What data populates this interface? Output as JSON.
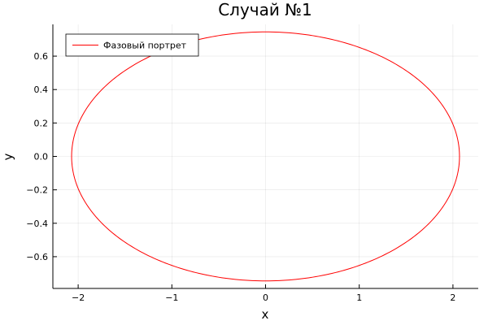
{
  "chart_data": {
    "type": "line",
    "title": "Случай №1",
    "xlabel": "x",
    "ylabel": "y",
    "xlim": [
      -2.27,
      2.27
    ],
    "ylim": [
      -0.79,
      0.79
    ],
    "xticks": [
      -2,
      -1,
      0,
      1,
      2
    ],
    "xtick_labels": [
      "−2",
      "−1",
      "0",
      "1",
      "2"
    ],
    "yticks": [
      -0.6,
      -0.4,
      -0.2,
      0.0,
      0.2,
      0.4,
      0.6
    ],
    "ytick_labels": [
      "−0.6",
      "−0.4",
      "−0.2",
      "0.0",
      "0.2",
      "0.4",
      "0.6"
    ],
    "grid": true,
    "legend_position": "top-left",
    "series": [
      {
        "name": "Фазовый портрет",
        "color": "#ff0000",
        "shape": "ellipse",
        "center": [
          0.0,
          0.0
        ],
        "semi_axis_x": 2.07,
        "semi_axis_y": 0.745
      }
    ]
  }
}
